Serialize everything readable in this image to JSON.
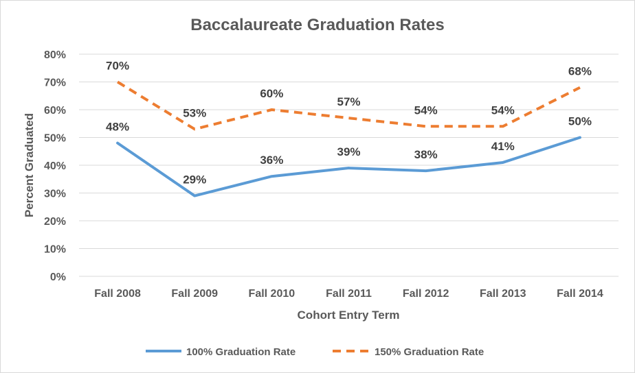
{
  "chart_data": {
    "type": "line",
    "title": "Baccalaureate Graduation Rates",
    "xlabel": "Cohort Entry Term",
    "ylabel": "Percent Graduated",
    "categories": [
      "Fall 2008",
      "Fall 2009",
      "Fall 2010",
      "Fall 2011",
      "Fall 2012",
      "Fall 2013",
      "Fall 2014"
    ],
    "ylim": [
      0,
      80
    ],
    "yticks": [
      0,
      10,
      20,
      30,
      40,
      50,
      60,
      70,
      80
    ],
    "ytick_labels": [
      "0%",
      "10%",
      "20%",
      "30%",
      "40%",
      "50%",
      "60%",
      "70%",
      "80%"
    ],
    "grid": true,
    "legend_position": "bottom",
    "series": [
      {
        "name": "100% Graduation Rate",
        "values": [
          48,
          29,
          36,
          39,
          38,
          41,
          50
        ],
        "labels": [
          "48%",
          "29%",
          "36%",
          "39%",
          "38%",
          "41%",
          "50%"
        ],
        "color": "#5b9bd5",
        "style": "solid"
      },
      {
        "name": "150% Graduation Rate",
        "values": [
          70,
          53,
          60,
          57,
          54,
          54,
          68
        ],
        "labels": [
          "70%",
          "53%",
          "60%",
          "57%",
          "54%",
          "54%",
          "68%"
        ],
        "color": "#ed7d31",
        "style": "dashed"
      }
    ]
  },
  "colors": {
    "gridline": "#d9d9d9",
    "text": "#595959"
  }
}
